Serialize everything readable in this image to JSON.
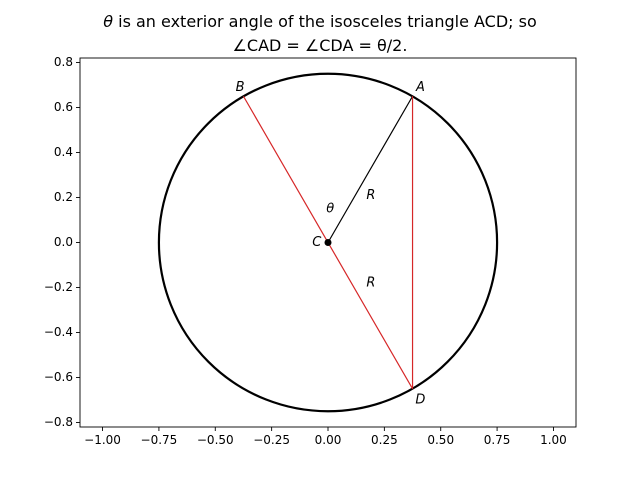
{
  "chart_data": {
    "type": "scatter",
    "title": {
      "line1_symbol": "θ",
      "line1_rest": " is an exterior angle of the isosceles triangle ACD; so",
      "line2": "∠CAD = ∠CDA = θ/2."
    },
    "xlim": [
      -1.1,
      1.1
    ],
    "ylim": [
      -0.82,
      0.82
    ],
    "grid": false,
    "x_ticks": [
      -1.0,
      -0.75,
      -0.5,
      -0.25,
      0.0,
      0.25,
      0.5,
      0.75,
      1.0
    ],
    "x_tick_labels": [
      "−1.00",
      "−0.75",
      "−0.50",
      "−0.25",
      "0.00",
      "0.25",
      "0.50",
      "0.75",
      "1.00"
    ],
    "y_ticks": [
      -0.8,
      -0.6,
      -0.4,
      -0.2,
      0.0,
      0.2,
      0.4,
      0.6,
      0.8
    ],
    "y_tick_labels": [
      "−0.8",
      "−0.6",
      "−0.4",
      "−0.2",
      "0.0",
      "0.2",
      "0.4",
      "0.6",
      "0.8"
    ],
    "circle": {
      "center": [
        0,
        0
      ],
      "radius": 0.75,
      "color": "#000000"
    },
    "points": [
      {
        "name": "A",
        "x": 0.375,
        "y": 0.65
      },
      {
        "name": "B",
        "x": -0.375,
        "y": 0.65
      },
      {
        "name": "C",
        "x": 0.0,
        "y": 0.0
      },
      {
        "name": "D",
        "x": 0.375,
        "y": -0.65
      }
    ],
    "segments": [
      {
        "id": "CA",
        "x": [
          0.0,
          0.375
        ],
        "y": [
          0.0,
          0.65
        ],
        "color": "#000000"
      },
      {
        "id": "BD",
        "x": [
          -0.375,
          0.375
        ],
        "y": [
          0.65,
          -0.65
        ],
        "color": "#d62728"
      },
      {
        "id": "AD",
        "x": [
          0.375,
          0.375
        ],
        "y": [
          0.65,
          -0.65
        ],
        "color": "#d62728"
      }
    ],
    "center_marker": {
      "x": 0.0,
      "y": 0.0,
      "color": "#000000"
    },
    "annotations": [
      {
        "text": "A",
        "x": 0.41,
        "y": 0.69
      },
      {
        "text": "B",
        "x": -0.39,
        "y": 0.69
      },
      {
        "text": "C",
        "x": -0.05,
        "y": 0.0
      },
      {
        "text": "D",
        "x": 0.41,
        "y": -0.7
      },
      {
        "text": "R",
        "x": 0.19,
        "y": 0.21
      },
      {
        "text": "R",
        "x": 0.19,
        "y": -0.18
      },
      {
        "text": "θ",
        "x": 0.01,
        "y": 0.15
      }
    ]
  }
}
